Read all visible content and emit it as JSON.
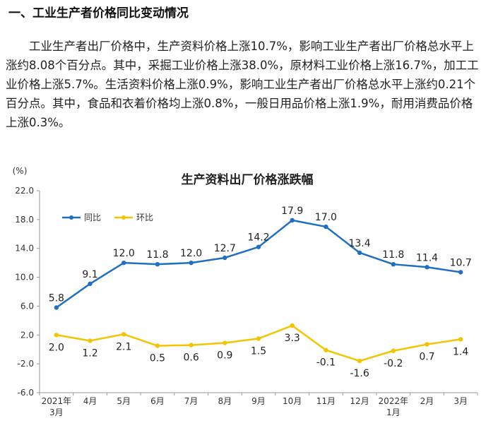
{
  "section": {
    "heading": "一、工业生产者价格同比变动情况",
    "paragraph": "工业生产者出厂价格中，生产资料价格上涨10.7%，影响工业生产者出厂价格总水平上涨约8.08个百分点。其中，采掘工业价格上涨38.0%，原材料工业价格上涨16.7%，加工工业价格上涨5.7%。生活资料价格上涨0.9%，影响工业生产者出厂价格总水平上涨约0.21个百分点。其中，食品和衣着价格均上涨0.8%，一般日用品价格上涨1.9%，耐用消费品价格上涨0.3%。"
  },
  "chart_data": {
    "type": "line",
    "title": "生产资料出厂价格涨跌幅",
    "ylabel": "(%)",
    "ylim": [
      -6,
      22
    ],
    "yticks": [
      "22.0",
      "18.0",
      "14.0",
      "10.0",
      "6.0",
      "2.0",
      "-2.0",
      "-6.0"
    ],
    "ytick_values": [
      22,
      18,
      14,
      10,
      6,
      2,
      -2,
      -6
    ],
    "categories": [
      [
        "2021年",
        "3月"
      ],
      [
        "4月"
      ],
      [
        "5月"
      ],
      [
        "6月"
      ],
      [
        "7月"
      ],
      [
        "8月"
      ],
      [
        "9月"
      ],
      [
        "10月"
      ],
      [
        "11月"
      ],
      [
        "12月"
      ],
      [
        "2022年",
        "1月"
      ],
      [
        "2月"
      ],
      [
        "3月"
      ]
    ],
    "series": [
      {
        "name": "同比",
        "color": "#1f6fc4",
        "values": [
          5.8,
          9.1,
          12.0,
          11.8,
          12.0,
          12.7,
          14.2,
          17.9,
          17.0,
          13.4,
          11.8,
          11.4,
          10.7
        ],
        "labels": [
          "5.8",
          "9.1",
          "12.0",
          "11.8",
          "12.0",
          "12.7",
          "14.2",
          "17.9",
          "17.0",
          "13.4",
          "11.8",
          "11.4",
          "10.7"
        ]
      },
      {
        "name": "环比",
        "color": "#f5c400",
        "values": [
          2.0,
          1.2,
          2.1,
          0.5,
          0.6,
          0.9,
          1.5,
          3.3,
          -0.1,
          -1.6,
          -0.2,
          0.7,
          1.4
        ],
        "labels": [
          "2.0",
          "1.2",
          "2.1",
          "0.5",
          "0.6",
          "0.9",
          "1.5",
          "3.3",
          "-0.1",
          "-1.6",
          "-0.2",
          "0.7",
          "1.4"
        ]
      }
    ],
    "legend_position": "top-left",
    "grid": false
  }
}
